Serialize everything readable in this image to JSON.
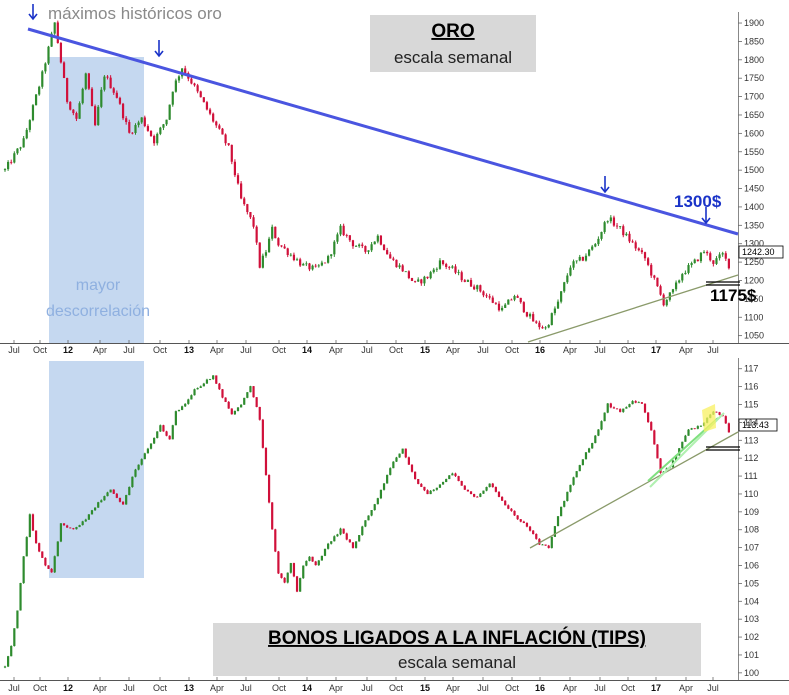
{
  "chart_data": [
    {
      "type": "candlestick",
      "title": "ORO",
      "subtitle": "escala semanal",
      "y_ticks": [
        1050,
        1100,
        1150,
        1200,
        1250,
        1300,
        1350,
        1400,
        1450,
        1500,
        1550,
        1600,
        1650,
        1700,
        1750,
        1800,
        1850,
        1900
      ],
      "ylim": [
        1030,
        1930
      ],
      "last_value": "1242.30",
      "x_ticks": [
        "Jul",
        "Oct",
        "12",
        "Apr",
        "Jul",
        "Oct",
        "13",
        "Apr",
        "Jul",
        "Oct",
        "14",
        "Apr",
        "Jul",
        "Oct",
        "15",
        "Apr",
        "Jul",
        "Oct",
        "16",
        "Apr",
        "Jul",
        "Oct",
        "17",
        "Apr",
        "Jul"
      ],
      "series_path": [
        {
          "t": 0,
          "v": 1500
        },
        {
          "t": 3,
          "v": 1580
        },
        {
          "t": 6,
          "v": 1760
        },
        {
          "t": 8,
          "v": 1900
        },
        {
          "t": 10,
          "v": 1690
        },
        {
          "t": 11.5,
          "v": 1640
        },
        {
          "t": 13,
          "v": 1760
        },
        {
          "t": 14.5,
          "v": 1620
        },
        {
          "t": 16,
          "v": 1760
        },
        {
          "t": 18,
          "v": 1700
        },
        {
          "t": 20,
          "v": 1600
        },
        {
          "t": 22,
          "v": 1640
        },
        {
          "t": 24,
          "v": 1580
        },
        {
          "t": 26,
          "v": 1640
        },
        {
          "t": 27,
          "v": 1720
        },
        {
          "t": 28.5,
          "v": 1780
        },
        {
          "t": 30,
          "v": 1740
        },
        {
          "t": 32,
          "v": 1680
        },
        {
          "t": 34,
          "v": 1620
        },
        {
          "t": 36,
          "v": 1560
        },
        {
          "t": 38,
          "v": 1420
        },
        {
          "t": 40,
          "v": 1350
        },
        {
          "t": 41,
          "v": 1240
        },
        {
          "t": 42,
          "v": 1280
        },
        {
          "t": 43,
          "v": 1340
        },
        {
          "t": 44,
          "v": 1300
        },
        {
          "t": 46,
          "v": 1270
        },
        {
          "t": 48,
          "v": 1240
        },
        {
          "t": 50,
          "v": 1230
        },
        {
          "t": 52,
          "v": 1260
        },
        {
          "t": 54,
          "v": 1340
        },
        {
          "t": 56,
          "v": 1300
        },
        {
          "t": 58,
          "v": 1280
        },
        {
          "t": 60,
          "v": 1320
        },
        {
          "t": 62,
          "v": 1260
        },
        {
          "t": 64,
          "v": 1230
        },
        {
          "t": 66,
          "v": 1190
        },
        {
          "t": 68,
          "v": 1210
        },
        {
          "t": 70,
          "v": 1250
        },
        {
          "t": 72,
          "v": 1230
        },
        {
          "t": 74,
          "v": 1200
        },
        {
          "t": 76,
          "v": 1180
        },
        {
          "t": 78,
          "v": 1150
        },
        {
          "t": 80,
          "v": 1120
        },
        {
          "t": 82,
          "v": 1160
        },
        {
          "t": 84,
          "v": 1110
        },
        {
          "t": 85.5,
          "v": 1080
        },
        {
          "t": 87,
          "v": 1070
        },
        {
          "t": 89,
          "v": 1140
        },
        {
          "t": 91,
          "v": 1240
        },
        {
          "t": 93,
          "v": 1260
        },
        {
          "t": 95,
          "v": 1300
        },
        {
          "t": 97,
          "v": 1370
        },
        {
          "t": 99,
          "v": 1340
        },
        {
          "t": 101,
          "v": 1300
        },
        {
          "t": 103,
          "v": 1260
        },
        {
          "t": 105,
          "v": 1180
        },
        {
          "t": 106,
          "v": 1140
        },
        {
          "t": 107.5,
          "v": 1170
        },
        {
          "t": 109,
          "v": 1220
        },
        {
          "t": 111,
          "v": 1250
        },
        {
          "t": 112.5,
          "v": 1280
        },
        {
          "t": 114,
          "v": 1250
        },
        {
          "t": 115.5,
          "v": 1270
        },
        {
          "t": 116.5,
          "v": 1242
        }
      ],
      "annotations": {
        "top_label": "máximos históricos oro",
        "level_1": "1300$",
        "level_2": "1175$",
        "region_label_1": "mayor",
        "region_label_2": "descorrelación"
      }
    },
    {
      "type": "candlestick",
      "title": "BONOS LIGADOS A LA INFLACIÓN (TIPS)",
      "subtitle": "escala semanal",
      "y_ticks": [
        100,
        101,
        102,
        103,
        104,
        105,
        106,
        107,
        108,
        109,
        110,
        111,
        112,
        113,
        114,
        115,
        116,
        117
      ],
      "ylim": [
        99.6,
        117.6
      ],
      "last_value": "113.43",
      "x_ticks": [
        "Jul",
        "Oct",
        "12",
        "Apr",
        "Jul",
        "Oct",
        "13",
        "Apr",
        "Jul",
        "Oct",
        "14",
        "Apr",
        "Jul",
        "Oct",
        "15",
        "Apr",
        "Jul",
        "Oct",
        "16",
        "Apr",
        "Jul",
        "Oct",
        "17",
        "Apr",
        "Jul"
      ],
      "series_path": [
        {
          "t": 0,
          "v": 100.3
        },
        {
          "t": 1,
          "v": 101.5
        },
        {
          "t": 2,
          "v": 103.5
        },
        {
          "t": 3,
          "v": 106.5
        },
        {
          "t": 4,
          "v": 108.8
        },
        {
          "t": 5,
          "v": 107.2
        },
        {
          "t": 6.5,
          "v": 106.0
        },
        {
          "t": 7.5,
          "v": 105.6
        },
        {
          "t": 9,
          "v": 108.3
        },
        {
          "t": 11,
          "v": 108.0
        },
        {
          "t": 13,
          "v": 108.6
        },
        {
          "t": 15,
          "v": 109.5
        },
        {
          "t": 17,
          "v": 110.2
        },
        {
          "t": 19,
          "v": 109.4
        },
        {
          "t": 21,
          "v": 111.4
        },
        {
          "t": 23,
          "v": 112.5
        },
        {
          "t": 25,
          "v": 113.8
        },
        {
          "t": 26.5,
          "v": 113.0
        },
        {
          "t": 27.5,
          "v": 114.6
        },
        {
          "t": 29,
          "v": 115.0
        },
        {
          "t": 30.5,
          "v": 115.8
        },
        {
          "t": 32,
          "v": 116.2
        },
        {
          "t": 33.5,
          "v": 116.6
        },
        {
          "t": 35,
          "v": 115.4
        },
        {
          "t": 36.5,
          "v": 114.5
        },
        {
          "t": 38,
          "v": 115.0
        },
        {
          "t": 39.5,
          "v": 116.0
        },
        {
          "t": 41,
          "v": 114.2
        },
        {
          "t": 42,
          "v": 111.0
        },
        {
          "t": 43,
          "v": 108.0
        },
        {
          "t": 44,
          "v": 105.5
        },
        {
          "t": 45,
          "v": 105.0
        },
        {
          "t": 46,
          "v": 106.2
        },
        {
          "t": 47,
          "v": 104.6
        },
        {
          "t": 48,
          "v": 106.0
        },
        {
          "t": 49,
          "v": 106.5
        },
        {
          "t": 50,
          "v": 106.0
        },
        {
          "t": 52,
          "v": 107.2
        },
        {
          "t": 54,
          "v": 108.0
        },
        {
          "t": 56,
          "v": 107.0
        },
        {
          "t": 58,
          "v": 108.5
        },
        {
          "t": 60,
          "v": 109.8
        },
        {
          "t": 62,
          "v": 111.5
        },
        {
          "t": 64,
          "v": 112.5
        },
        {
          "t": 66,
          "v": 110.8
        },
        {
          "t": 68,
          "v": 110.0
        },
        {
          "t": 70,
          "v": 110.5
        },
        {
          "t": 72,
          "v": 111.2
        },
        {
          "t": 74,
          "v": 110.2
        },
        {
          "t": 76,
          "v": 109.8
        },
        {
          "t": 78,
          "v": 110.6
        },
        {
          "t": 80,
          "v": 109.6
        },
        {
          "t": 82,
          "v": 108.8
        },
        {
          "t": 84,
          "v": 108.2
        },
        {
          "t": 86,
          "v": 107.2
        },
        {
          "t": 87.5,
          "v": 107.0
        },
        {
          "t": 89,
          "v": 108.8
        },
        {
          "t": 91,
          "v": 110.5
        },
        {
          "t": 93,
          "v": 112.0
        },
        {
          "t": 95,
          "v": 113.2
        },
        {
          "t": 97,
          "v": 115.0
        },
        {
          "t": 99,
          "v": 114.6
        },
        {
          "t": 101,
          "v": 115.2
        },
        {
          "t": 102.5,
          "v": 115.0
        },
        {
          "t": 104,
          "v": 113.6
        },
        {
          "t": 105.5,
          "v": 111.2
        },
        {
          "t": 107,
          "v": 111.5
        },
        {
          "t": 108.5,
          "v": 112.5
        },
        {
          "t": 110,
          "v": 113.6
        },
        {
          "t": 112,
          "v": 113.8
        },
        {
          "t": 114,
          "v": 114.6
        },
        {
          "t": 115.5,
          "v": 114.4
        },
        {
          "t": 116.5,
          "v": 113.43
        }
      ]
    }
  ],
  "colors": {
    "up_candle": "#2e8b2e",
    "down_candle": "#d0103a",
    "resistance_line": "#4a55e0",
    "support_line": "#8a9a6a",
    "highlight_region": "#c5d8f0",
    "title_box": "#d8d8d8"
  }
}
